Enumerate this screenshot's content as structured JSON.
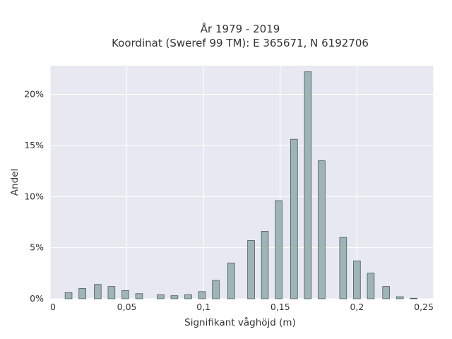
{
  "chart_data": {
    "type": "bar",
    "title_lines": [
      "År 1979 - 2019",
      "Koordinat (Sweref 99 TM): E 365671, N 6192706"
    ],
    "xlabel": "Signifikant våghöjd (m)",
    "ylabel": "Andel",
    "x_range": [
      0,
      0.25
    ],
    "y_range": [
      0,
      22.8
    ],
    "x_ticks": [
      0,
      0.05,
      0.1,
      0.15,
      0.2,
      0.25
    ],
    "x_tick_labels": [
      "0",
      "0,05",
      "0,1",
      "0,15",
      "0,2",
      "0,25"
    ],
    "y_ticks": [
      0,
      5,
      10,
      15,
      20
    ],
    "y_tick_labels": [
      "0%",
      "5%",
      "10%",
      "15%",
      "20%"
    ],
    "bar_width": 0.0045,
    "x": [
      0.012,
      0.021,
      0.031,
      0.04,
      0.049,
      0.058,
      0.072,
      0.081,
      0.09,
      0.099,
      0.108,
      0.118,
      0.131,
      0.14,
      0.149,
      0.159,
      0.168,
      0.177,
      0.191,
      0.2,
      0.209,
      0.219,
      0.228,
      0.237
    ],
    "values": [
      0.6,
      1.0,
      1.4,
      1.2,
      0.8,
      0.5,
      0.4,
      0.3,
      0.4,
      0.7,
      1.8,
      3.5,
      5.7,
      6.6,
      9.6,
      15.6,
      22.2,
      13.5,
      6.0,
      3.7,
      2.5,
      1.2,
      0.2,
      0.05
    ],
    "grid": true,
    "colors": {
      "plot_bg": "#e8e8f0",
      "bar_fill": "#9fb5b5",
      "bar_stroke": "#4a5a5a",
      "grid": "#ffffff"
    }
  }
}
